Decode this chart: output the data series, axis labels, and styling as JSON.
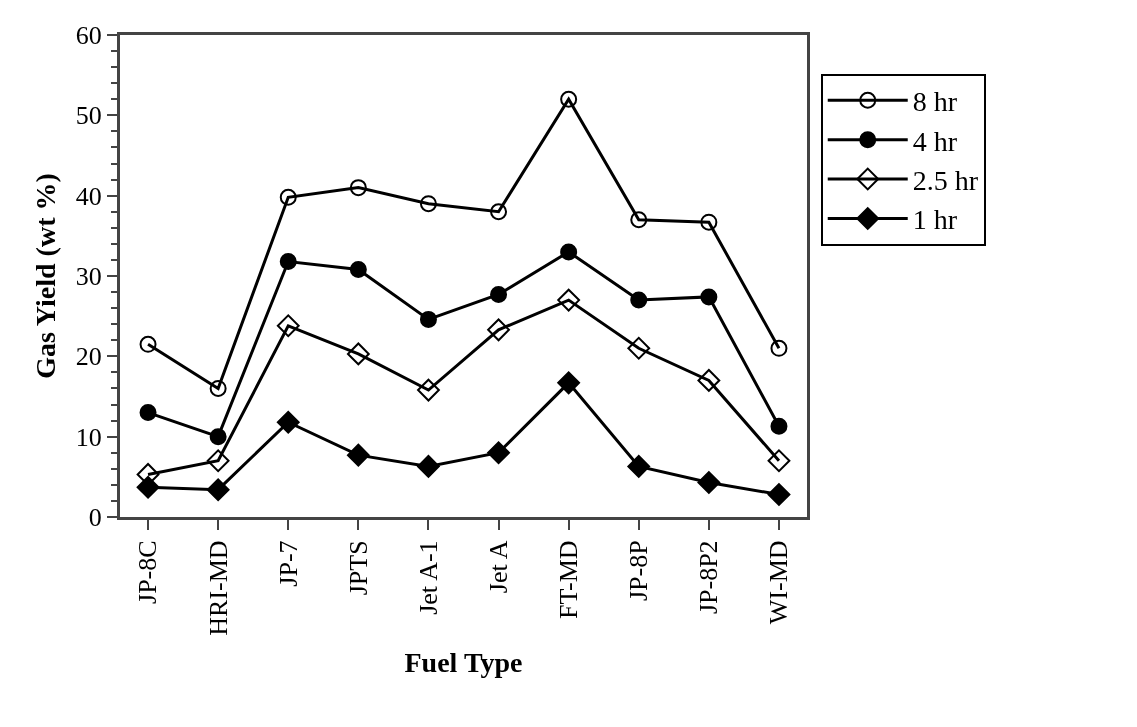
{
  "chart_data": {
    "type": "line",
    "xlabel": "Fuel Type",
    "ylabel": "Gas Yield (wt %)",
    "categories": [
      "JP-8C",
      "HRI-MD",
      "JP-7",
      "JPTS",
      "Jet A-1",
      "Jet A",
      "FT-MD",
      "JP-8P",
      "JP-8P2",
      "WI-MD"
    ],
    "series": [
      {
        "name": "8 hr",
        "color": "#000000",
        "marker": "circle-open",
        "values": [
          21.5,
          16,
          39.8,
          41,
          39,
          38,
          52,
          37,
          36.7,
          21
        ]
      },
      {
        "name": "4 hr",
        "color": "#000000",
        "marker": "circle",
        "values": [
          13,
          10,
          31.8,
          30.8,
          24.6,
          27.7,
          33,
          27,
          27.4,
          11.3
        ]
      },
      {
        "name": "2.5 hr",
        "color": "#000000",
        "marker": "diamond-open",
        "values": [
          5.3,
          7,
          23.8,
          20.3,
          15.8,
          23.3,
          27,
          21,
          17,
          7
        ]
      },
      {
        "name": "1 hr",
        "color": "#000000",
        "marker": "diamond",
        "values": [
          3.7,
          3.4,
          11.8,
          7.7,
          6.3,
          8,
          16.7,
          6.3,
          4.3,
          2.8
        ]
      }
    ],
    "ylim": [
      0,
      60
    ],
    "yticks": [
      0,
      10,
      20,
      30,
      40,
      50,
      60
    ],
    "grid": false,
    "legend": "right",
    "line_style": "solid"
  }
}
